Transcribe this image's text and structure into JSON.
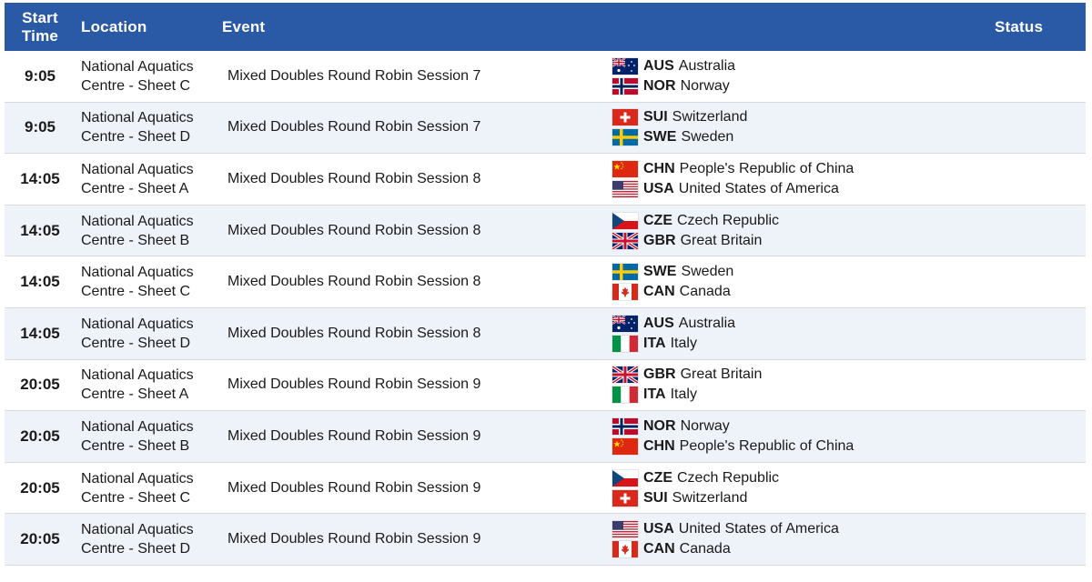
{
  "header": {
    "start_time_line1": "Start",
    "start_time_line2": "Time",
    "location": "Location",
    "event": "Event",
    "status": "Status"
  },
  "rows": [
    {
      "time": "9:05",
      "loc1": "National Aquatics",
      "loc2": "Centre - Sheet C",
      "event": "Mixed Doubles Round Robin Session 7",
      "t1": {
        "flag": "aus-flag-icon",
        "code": "AUS",
        "name": "Australia"
      },
      "t2": {
        "flag": "nor-flag-icon",
        "code": "NOR",
        "name": "Norway"
      }
    },
    {
      "time": "9:05",
      "loc1": "National Aquatics",
      "loc2": "Centre - Sheet D",
      "event": "Mixed Doubles Round Robin Session 7",
      "t1": {
        "flag": "sui-flag-icon",
        "code": "SUI",
        "name": "Switzerland"
      },
      "t2": {
        "flag": "swe-flag-icon",
        "code": "SWE",
        "name": "Sweden"
      }
    },
    {
      "time": "14:05",
      "loc1": "National Aquatics",
      "loc2": "Centre - Sheet A",
      "event": "Mixed Doubles Round Robin Session 8",
      "t1": {
        "flag": "chn-flag-icon",
        "code": "CHN",
        "name": "People's Republic of China"
      },
      "t2": {
        "flag": "usa-flag-icon",
        "code": "USA",
        "name": "United States of America"
      }
    },
    {
      "time": "14:05",
      "loc1": "National Aquatics",
      "loc2": "Centre - Sheet B",
      "event": "Mixed Doubles Round Robin Session 8",
      "t1": {
        "flag": "cze-flag-icon",
        "code": "CZE",
        "name": "Czech Republic"
      },
      "t2": {
        "flag": "gbr-flag-icon",
        "code": "GBR",
        "name": "Great Britain"
      }
    },
    {
      "time": "14:05",
      "loc1": "National Aquatics",
      "loc2": "Centre - Sheet C",
      "event": "Mixed Doubles Round Robin Session 8",
      "t1": {
        "flag": "swe-flag-icon",
        "code": "SWE",
        "name": "Sweden"
      },
      "t2": {
        "flag": "can-flag-icon",
        "code": "CAN",
        "name": "Canada"
      }
    },
    {
      "time": "14:05",
      "loc1": "National Aquatics",
      "loc2": "Centre - Sheet D",
      "event": "Mixed Doubles Round Robin Session 8",
      "t1": {
        "flag": "aus-flag-icon",
        "code": "AUS",
        "name": "Australia"
      },
      "t2": {
        "flag": "ita-flag-icon",
        "code": "ITA",
        "name": "Italy"
      }
    },
    {
      "time": "20:05",
      "loc1": "National Aquatics",
      "loc2": "Centre - Sheet A",
      "event": "Mixed Doubles Round Robin Session 9",
      "t1": {
        "flag": "gbr-flag-icon",
        "code": "GBR",
        "name": "Great Britain"
      },
      "t2": {
        "flag": "ita-flag-icon",
        "code": "ITA",
        "name": "Italy"
      }
    },
    {
      "time": "20:05",
      "loc1": "National Aquatics",
      "loc2": "Centre - Sheet B",
      "event": "Mixed Doubles Round Robin Session 9",
      "t1": {
        "flag": "nor-flag-icon",
        "code": "NOR",
        "name": "Norway"
      },
      "t2": {
        "flag": "chn-flag-icon",
        "code": "CHN",
        "name": "People's Republic of China"
      }
    },
    {
      "time": "20:05",
      "loc1": "National Aquatics",
      "loc2": "Centre - Sheet C",
      "event": "Mixed Doubles Round Robin Session 9",
      "t1": {
        "flag": "cze-flag-icon",
        "code": "CZE",
        "name": "Czech Republic"
      },
      "t2": {
        "flag": "sui-flag-icon",
        "code": "SUI",
        "name": "Switzerland"
      }
    },
    {
      "time": "20:05",
      "loc1": "National Aquatics",
      "loc2": "Centre - Sheet D",
      "event": "Mixed Doubles Round Robin Session 9",
      "t1": {
        "flag": "usa-flag-icon",
        "code": "USA",
        "name": "United States of America"
      },
      "t2": {
        "flag": "can-flag-icon",
        "code": "CAN",
        "name": "Canada"
      }
    }
  ],
  "colors": {
    "header_bg": "#2a5aa6",
    "alt_row_bg": "#eef2f9",
    "row_border": "#d6d9de"
  }
}
